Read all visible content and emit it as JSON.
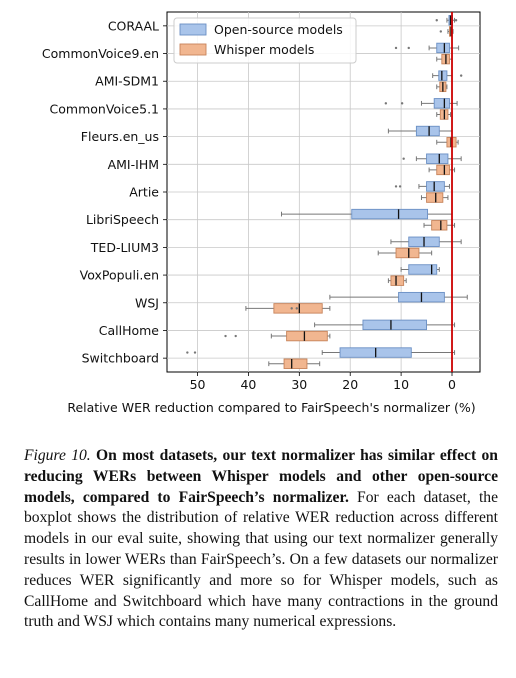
{
  "chart_data": {
    "type": "boxplot",
    "orientation": "horizontal",
    "xlabel": "Relative WER reduction compared to FairSpeech's normalizer (%)",
    "xlim": [
      56,
      -5.5
    ],
    "xticks": [
      50,
      40,
      30,
      20,
      10,
      0
    ],
    "reference_line": {
      "x": 0,
      "color": "#cc0000"
    },
    "grid": true,
    "legend": {
      "placement": "top-left"
    },
    "series": [
      {
        "name": "Open-source models",
        "color": "#a9c4ea",
        "edge": "#6a8fc4"
      },
      {
        "name": "Whisper models",
        "color": "#f1b690",
        "edge": "#c7835a"
      }
    ],
    "categories": [
      "CORAAL",
      "CommonVoice9.en",
      "AMI-SDM1",
      "CommonVoice5.1",
      "Fleurs.en_us",
      "AMI-IHM",
      "Artie",
      "LibriSpeech",
      "TED-LIUM3",
      "VoxPopuli.en",
      "WSJ",
      "CallHome",
      "Switchboard"
    ],
    "boxes": [
      {
        "category": "CORAAL",
        "open": {
          "whislo": -0.5,
          "q1": -0.1,
          "med": 0.3,
          "q3": 0.6,
          "whishi": 1.0,
          "fliers": [
            3.0,
            -0.8
          ]
        },
        "whisper": {
          "whislo": -0.2,
          "q1": 0.0,
          "med": 0.2,
          "q3": 0.5,
          "whishi": 0.8,
          "fliers": [
            2.2
          ]
        }
      },
      {
        "category": "CommonVoice9.en",
        "open": {
          "whislo": -1.3,
          "q1": 0.5,
          "med": 1.5,
          "q3": 3.0,
          "whishi": 4.5,
          "fliers": [
            11.0,
            8.5
          ]
        },
        "whisper": {
          "whislo": 0.0,
          "q1": 0.5,
          "med": 1.2,
          "q3": 2.0,
          "whishi": 3.0,
          "fliers": []
        }
      },
      {
        "category": "AMI-SDM1",
        "open": {
          "whislo": 0.0,
          "q1": 1.0,
          "med": 2.0,
          "q3": 2.6,
          "whishi": 3.8,
          "fliers": [
            -1.8
          ]
        },
        "whisper": {
          "whislo": 1.0,
          "q1": 1.2,
          "med": 1.8,
          "q3": 2.4,
          "whishi": 3.0,
          "fliers": []
        }
      },
      {
        "category": "CommonVoice5.1",
        "open": {
          "whislo": -1.0,
          "q1": 0.5,
          "med": 1.5,
          "q3": 3.5,
          "whishi": 6.0,
          "fliers": [
            13.0,
            9.8
          ]
        },
        "whisper": {
          "whislo": 0.3,
          "q1": 0.8,
          "med": 1.5,
          "q3": 2.3,
          "whishi": 3.0,
          "fliers": []
        }
      },
      {
        "category": "Fleurs.en_us",
        "open": {
          "whislo": 0.0,
          "q1": 2.5,
          "med": 4.5,
          "q3": 7.0,
          "whishi": 12.5,
          "fliers": []
        },
        "whisper": {
          "whislo": -1.2,
          "q1": -0.8,
          "med": 0.2,
          "q3": 1.0,
          "whishi": 3.0,
          "fliers": []
        }
      },
      {
        "category": "AMI-IHM",
        "open": {
          "whislo": -1.8,
          "q1": 0.8,
          "med": 2.5,
          "q3": 5.0,
          "whishi": 7.0,
          "fliers": [
            9.5
          ]
        },
        "whisper": {
          "whislo": -0.5,
          "q1": 0.5,
          "med": 1.5,
          "q3": 3.0,
          "whishi": 4.5,
          "fliers": []
        }
      },
      {
        "category": "Artie",
        "open": {
          "whislo": 0.5,
          "q1": 1.5,
          "med": 3.5,
          "q3": 5.0,
          "whishi": 6.5,
          "fliers": [
            11.0,
            10.2
          ]
        },
        "whisper": {
          "whislo": 0.8,
          "q1": 1.8,
          "med": 3.2,
          "q3": 5.0,
          "whishi": 6.0,
          "fliers": []
        }
      },
      {
        "category": "LibriSpeech",
        "open": {
          "whislo": 0.0,
          "q1": 4.8,
          "med": 10.5,
          "q3": 19.7,
          "whishi": 33.5,
          "fliers": []
        },
        "whisper": {
          "whislo": -0.5,
          "q1": 1.0,
          "med": 2.2,
          "q3": 4.0,
          "whishi": 5.5,
          "fliers": []
        }
      },
      {
        "category": "TED-LIUM3",
        "open": {
          "whislo": -1.8,
          "q1": 2.5,
          "med": 5.5,
          "q3": 8.5,
          "whishi": 12.0,
          "fliers": []
        },
        "whisper": {
          "whislo": 4.0,
          "q1": 6.5,
          "med": 8.5,
          "q3": 11.0,
          "whishi": 14.5,
          "fliers": []
        }
      },
      {
        "category": "VoxPopuli.en",
        "open": {
          "whislo": 2.5,
          "q1": 3.0,
          "med": 4.0,
          "q3": 8.5,
          "whishi": 10.0,
          "fliers": []
        },
        "whisper": {
          "whislo": 9.0,
          "q1": 9.5,
          "med": 11.0,
          "q3": 12.0,
          "whishi": 12.5,
          "fliers": []
        }
      },
      {
        "category": "WSJ",
        "open": {
          "whislo": -3.0,
          "q1": 1.5,
          "med": 6.0,
          "q3": 10.5,
          "whishi": 24.0,
          "fliers": []
        },
        "whisper": {
          "whislo": 24.0,
          "q1": 25.5,
          "med": 30.0,
          "q3": 35.0,
          "whishi": 40.5,
          "fliers": [
            31.5,
            30.5
          ]
        }
      },
      {
        "category": "CallHome",
        "open": {
          "whislo": -0.5,
          "q1": 5.0,
          "med": 12.0,
          "q3": 17.5,
          "whishi": 27.0,
          "fliers": []
        },
        "whisper": {
          "whislo": 24.0,
          "q1": 24.5,
          "med": 29.0,
          "q3": 32.5,
          "whishi": 35.5,
          "fliers": [
            44.5,
            42.5
          ]
        }
      },
      {
        "category": "Switchboard",
        "open": {
          "whislo": -0.5,
          "q1": 8.0,
          "med": 15.0,
          "q3": 22.0,
          "whishi": 25.5,
          "fliers": [
            52.0,
            50.5
          ]
        },
        "whisper": {
          "whislo": 26.0,
          "q1": 28.5,
          "med": 31.5,
          "q3": 33.0,
          "whishi": 36.0,
          "fliers": []
        }
      }
    ]
  },
  "caption": {
    "label": "Figure 10.",
    "bold": "On most datasets, our text normalizer has similar effect on reducing WERs between Whisper models and other open-source models, compared to FairSpeech’s normalizer.",
    "body": "For each dataset, the boxplot shows the distribution of relative WER reduction across different models in our eval suite, showing that using our text normalizer generally results in lower WERs than FairSpeech’s. On a few datasets our normalizer reduces WER significantly and more so for Whisper models, such as CallHome and Switchboard which have many contractions in the ground truth and WSJ which contains many numerical expressions."
  }
}
